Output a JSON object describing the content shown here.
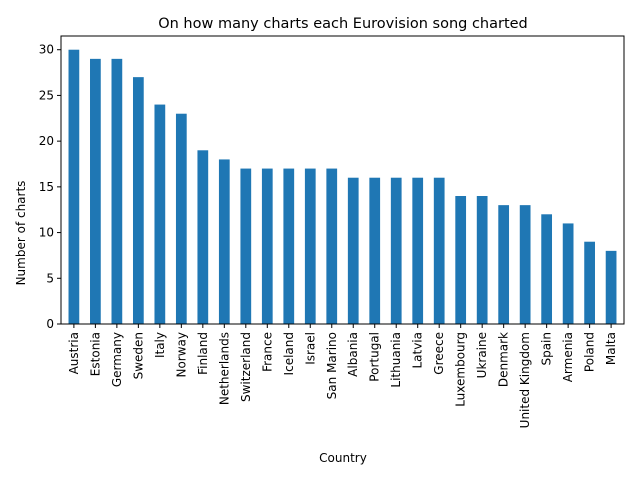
{
  "chart_data": {
    "type": "bar",
    "title": "On how many charts each Eurovision song charted",
    "xlabel": "Country",
    "ylabel": "Number of charts",
    "ylim": [
      0,
      31.5
    ],
    "yticks": [
      0,
      5,
      10,
      15,
      20,
      25,
      30
    ],
    "grid": false,
    "legend": "none",
    "bar_color": "#1f77b4",
    "categories": [
      "Austria",
      "Estonia",
      "Germany",
      "Sweden",
      "Italy",
      "Norway",
      "Finland",
      "Netherlands",
      "Switzerland",
      "France",
      "Iceland",
      "Israel",
      "San Marino",
      "Albania",
      "Portugal",
      "Lithuania",
      "Latvia",
      "Greece",
      "Luxembourg",
      "Ukraine",
      "Denmark",
      "United Kingdom",
      "Spain",
      "Armenia",
      "Poland",
      "Malta"
    ],
    "values": [
      30,
      29,
      29,
      27,
      24,
      23,
      19,
      18,
      17,
      17,
      17,
      17,
      17,
      16,
      16,
      16,
      16,
      16,
      14,
      14,
      13,
      13,
      12,
      11,
      9,
      8
    ]
  }
}
